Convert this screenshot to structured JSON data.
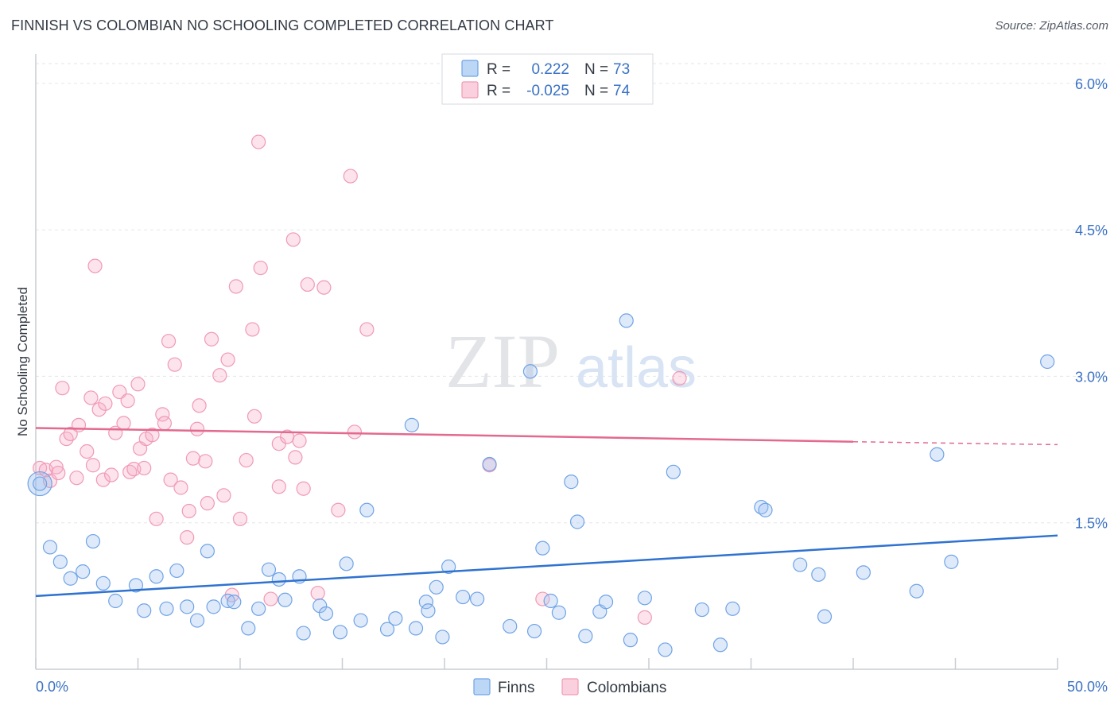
{
  "title": "FINNISH VS COLOMBIAN NO SCHOOLING COMPLETED CORRELATION CHART",
  "source": "Source: ZipAtlas.com",
  "watermark": {
    "zip": "ZIP",
    "atlas": "atlas"
  },
  "colors": {
    "finns": "#6fa3e6",
    "finns_line": "#2f72d0",
    "colombians": "#f09ab5",
    "colombians_line": "#e3698f",
    "accent_text": "#3a72c4"
  },
  "legend_top": {
    "rows": [
      {
        "r_label": "R =",
        "r_value": "0.222",
        "n_label": "N =",
        "n_value": "73"
      },
      {
        "r_label": "R =",
        "r_value": "-0.025",
        "n_label": "N =",
        "n_value": "74"
      }
    ]
  },
  "chart_data": {
    "type": "scatter",
    "title": "FINNISH VS COLOMBIAN NO SCHOOLING COMPLETED CORRELATION CHART",
    "xlabel": "",
    "ylabel": "No Schooling Completed",
    "xlim": [
      0,
      50
    ],
    "ylim": [
      0,
      6.3
    ],
    "x_tick_labels": [
      "0.0%",
      "50.0%"
    ],
    "y_ticks": [
      1.5,
      3.0,
      4.5,
      6.0
    ],
    "y_tick_labels": [
      "1.5%",
      "3.0%",
      "4.5%",
      "6.0%"
    ],
    "grid": "horizontal dashed",
    "legend_placement": "bottom-center",
    "series": [
      {
        "name": "Finns",
        "trend": {
          "x": [
            0,
            50
          ],
          "y": [
            0.75,
            1.37
          ]
        },
        "points": [
          [
            0.2,
            1.9
          ],
          [
            0.7,
            1.25
          ],
          [
            1.2,
            1.1
          ],
          [
            1.7,
            0.93
          ],
          [
            2.3,
            1.0
          ],
          [
            2.8,
            1.31
          ],
          [
            3.3,
            0.88
          ],
          [
            3.9,
            0.7
          ],
          [
            4.9,
            0.86
          ],
          [
            5.3,
            0.6
          ],
          [
            5.9,
            0.95
          ],
          [
            6.4,
            0.62
          ],
          [
            6.9,
            1.01
          ],
          [
            7.4,
            0.64
          ],
          [
            7.9,
            0.5
          ],
          [
            8.4,
            1.21
          ],
          [
            8.7,
            0.64
          ],
          [
            9.4,
            0.7
          ],
          [
            9.7,
            0.69
          ],
          [
            10.4,
            0.42
          ],
          [
            10.9,
            0.62
          ],
          [
            11.4,
            1.02
          ],
          [
            11.9,
            0.92
          ],
          [
            12.2,
            0.71
          ],
          [
            12.9,
            0.95
          ],
          [
            13.1,
            0.37
          ],
          [
            13.9,
            0.65
          ],
          [
            14.2,
            0.57
          ],
          [
            14.9,
            0.38
          ],
          [
            15.2,
            1.08
          ],
          [
            15.9,
            0.5
          ],
          [
            16.2,
            1.63
          ],
          [
            17.2,
            0.41
          ],
          [
            17.6,
            0.52
          ],
          [
            18.4,
            2.5
          ],
          [
            18.6,
            0.42
          ],
          [
            19.1,
            0.69
          ],
          [
            19.2,
            0.6
          ],
          [
            19.6,
            0.84
          ],
          [
            19.9,
            0.33
          ],
          [
            20.2,
            1.05
          ],
          [
            20.9,
            0.74
          ],
          [
            21.6,
            0.72
          ],
          [
            22.2,
            2.1
          ],
          [
            23.2,
            0.44
          ],
          [
            24.2,
            3.05
          ],
          [
            24.4,
            0.39
          ],
          [
            24.8,
            1.24
          ],
          [
            25.2,
            0.7
          ],
          [
            25.6,
            0.58
          ],
          [
            26.2,
            1.92
          ],
          [
            26.5,
            1.51
          ],
          [
            26.9,
            0.34
          ],
          [
            27.6,
            0.59
          ],
          [
            27.9,
            0.69
          ],
          [
            28.9,
            3.57
          ],
          [
            29.1,
            0.3
          ],
          [
            29.8,
            0.73
          ],
          [
            30.8,
            0.2
          ],
          [
            31.2,
            2.02
          ],
          [
            32.6,
            0.61
          ],
          [
            33.5,
            0.25
          ],
          [
            34.1,
            0.62
          ],
          [
            35.5,
            1.66
          ],
          [
            35.7,
            1.63
          ],
          [
            37.4,
            1.07
          ],
          [
            38.3,
            0.97
          ],
          [
            38.6,
            0.54
          ],
          [
            40.5,
            0.99
          ],
          [
            43.1,
            0.8
          ],
          [
            44.1,
            2.2
          ],
          [
            44.8,
            1.1
          ],
          [
            49.5,
            3.15
          ]
        ]
      },
      {
        "name": "Colombians",
        "trend": {
          "x": [
            0,
            40
          ],
          "y": [
            2.47,
            2.33
          ]
        },
        "trend_extrapolated": {
          "x": [
            40,
            50
          ],
          "y": [
            2.33,
            2.3
          ]
        },
        "points": [
          [
            0.2,
            2.06
          ],
          [
            0.5,
            2.04
          ],
          [
            0.7,
            1.93
          ],
          [
            1.0,
            2.07
          ],
          [
            1.1,
            2.01
          ],
          [
            1.3,
            2.88
          ],
          [
            1.5,
            2.36
          ],
          [
            1.7,
            2.41
          ],
          [
            2.0,
            1.96
          ],
          [
            2.1,
            2.5
          ],
          [
            2.5,
            2.23
          ],
          [
            2.7,
            2.78
          ],
          [
            2.8,
            2.09
          ],
          [
            2.9,
            4.13
          ],
          [
            3.1,
            2.66
          ],
          [
            3.3,
            1.94
          ],
          [
            3.4,
            2.72
          ],
          [
            3.7,
            1.99
          ],
          [
            3.9,
            2.42
          ],
          [
            4.1,
            2.84
          ],
          [
            4.3,
            2.52
          ],
          [
            4.5,
            2.75
          ],
          [
            4.6,
            2.02
          ],
          [
            4.8,
            2.05
          ],
          [
            5.0,
            2.92
          ],
          [
            5.1,
            2.26
          ],
          [
            5.3,
            2.06
          ],
          [
            5.4,
            2.36
          ],
          [
            5.7,
            2.4
          ],
          [
            5.9,
            1.54
          ],
          [
            6.2,
            2.61
          ],
          [
            6.3,
            2.52
          ],
          [
            6.5,
            3.36
          ],
          [
            6.6,
            1.94
          ],
          [
            6.8,
            3.12
          ],
          [
            7.1,
            1.86
          ],
          [
            7.4,
            1.35
          ],
          [
            7.5,
            1.62
          ],
          [
            7.7,
            2.16
          ],
          [
            7.9,
            2.46
          ],
          [
            8.0,
            2.7
          ],
          [
            8.3,
            2.13
          ],
          [
            8.4,
            1.7
          ],
          [
            8.6,
            3.38
          ],
          [
            9.0,
            3.01
          ],
          [
            9.2,
            1.78
          ],
          [
            9.4,
            3.17
          ],
          [
            9.6,
            0.76
          ],
          [
            9.8,
            3.92
          ],
          [
            10.0,
            1.54
          ],
          [
            10.3,
            2.14
          ],
          [
            10.6,
            3.48
          ],
          [
            10.7,
            2.59
          ],
          [
            10.9,
            5.4
          ],
          [
            11.0,
            4.11
          ],
          [
            11.5,
            0.72
          ],
          [
            11.9,
            1.87
          ],
          [
            11.9,
            2.31
          ],
          [
            12.3,
            2.38
          ],
          [
            12.6,
            4.4
          ],
          [
            12.7,
            2.17
          ],
          [
            12.9,
            2.34
          ],
          [
            13.1,
            1.85
          ],
          [
            13.3,
            3.94
          ],
          [
            13.8,
            0.78
          ],
          [
            14.1,
            3.91
          ],
          [
            14.8,
            1.63
          ],
          [
            15.6,
            2.43
          ],
          [
            16.2,
            3.48
          ],
          [
            15.4,
            5.05
          ],
          [
            22.2,
            2.09
          ],
          [
            24.8,
            0.72
          ],
          [
            29.8,
            0.53
          ],
          [
            31.5,
            2.98
          ]
        ]
      }
    ]
  },
  "legend_bottom": {
    "items": [
      "Finns",
      "Colombians"
    ]
  }
}
